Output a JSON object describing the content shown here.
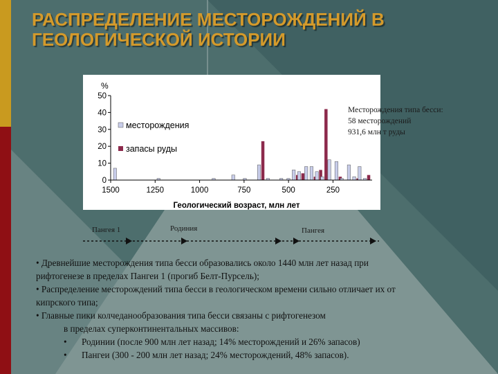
{
  "slide": {
    "title_line1": "РАСПРЕДЕЛЕНИЕ МЕСТОРОЖДЕНИЙ В",
    "title_line2": "ГЕОЛОГИЧЕСКОЙ ИСТОРИИ"
  },
  "colors": {
    "title": "#d49a2b",
    "left_bar_top": "#c99a1f",
    "left_bar_bottom": "#8f0f14",
    "background": "#4d6e6d",
    "series_deposits": "#c8cdea",
    "series_reserves": "#8c2a4c"
  },
  "chart_data": {
    "type": "bar",
    "ylabel": "%",
    "xlabel": "Геологический возраст, млн лет",
    "xlim": [
      1500,
      30
    ],
    "x_ticks": [
      1500,
      1250,
      1000,
      750,
      500,
      250
    ],
    "x_tick_labels": [
      "1500",
      "1250",
      "1000",
      "750",
      "500",
      "250"
    ],
    "ylim": [
      0,
      50
    ],
    "y_ticks": [
      0,
      10,
      20,
      30,
      40,
      50
    ],
    "y_tick_labels": [
      "0",
      "10",
      "20",
      "30",
      "40",
      "50"
    ],
    "x": [
      1465,
      1220,
      910,
      800,
      735,
      655,
      605,
      530,
      490,
      460,
      430,
      390,
      360,
      330,
      300,
      260,
      220,
      190,
      150,
      120,
      90,
      60
    ],
    "series": [
      {
        "name": "месторождения",
        "values": [
          7,
          1,
          1,
          3,
          1,
          9,
          1,
          1,
          1,
          6,
          5,
          8,
          8,
          5,
          2,
          12,
          11,
          1,
          9,
          2,
          8,
          1
        ]
      },
      {
        "name": "запасы руды",
        "values": [
          0,
          0,
          0,
          0,
          0,
          23,
          0,
          0,
          0,
          3,
          4,
          0,
          2,
          6,
          42,
          0,
          2,
          0,
          0,
          1,
          0,
          3
        ]
      }
    ],
    "legend_position": "top-left",
    "grid": false
  },
  "annotation": {
    "line1": "Месторождения типа бесси:",
    "line2": "58 месторождений",
    "line3": "931,6 млн т руды"
  },
  "timeline": {
    "labels": [
      "Пангея 1",
      "Родиния",
      "Пангея"
    ]
  },
  "text": {
    "p1_line1": "• Древнейшие месторождения типа бесси образовались около 1440 млн лет назад при",
    "p1_line2": "рифтогенезе в пределах Пангеи 1 (прогиб Белт-Пурсель);",
    "p2_line1": "• Распределение месторождений типа бесси в геологическом времени сильно отличает их от",
    "p2_line2": "кипрского типа;",
    "p3_line1": "• Главные пики колчеданообразования типа бесси связаны с рифтогенезом",
    "p3_line2": "в пределах суперконтинентальных массивов:",
    "bullet": "•",
    "sub1": "Родинии (после 900 млн лет назад; 14% месторождений и 26% запасов)",
    "sub2": "Пангеи (300 - 200 млн лет назад; 24% месторождений, 48% запасов)."
  }
}
